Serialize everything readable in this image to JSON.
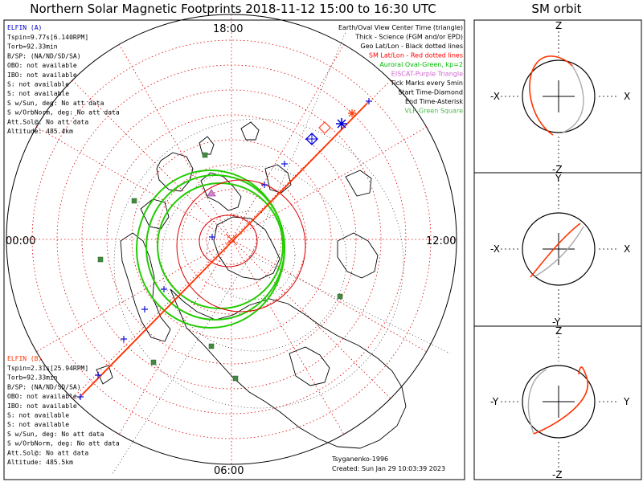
{
  "title": "Northern Solar Magnetic Footprints 2018-11-12 15:00 to 16:30 UTC",
  "orbit_title": "SM orbit",
  "colors": {
    "elfin_a": "#0000cc",
    "elfin_b": "#ff3300",
    "track": "#ff3300",
    "oval": "#00cc00",
    "grid": "#dd0000",
    "ticks": "#0000dd",
    "map": "#000000",
    "stations": "#448844",
    "eiscat": "#aa44aa"
  },
  "mlt_labels": {
    "top": "18:00",
    "left": "00:00",
    "right": "12:00",
    "bottom": "06:00"
  },
  "elfin_a": {
    "name": "ELFIN (A)",
    "lines": [
      "Tspin=9.77s[6.140RPM]",
      "Torb=92.33min",
      "B/SP: (NA/ND/SD/SA)",
      "OBO: not available",
      "IBO: not available",
      "S: not available",
      "S: not available",
      "S w/Sun, deg: No att data",
      "S w/OrbNorm, deg: No att data",
      "Att.Sol@: No att data",
      "Altitude: 485.4km"
    ]
  },
  "elfin_b": {
    "name": "ELFIN (B)",
    "lines": [
      "Tspin=2.31s[25.94RPM]",
      "Torb=92.33min",
      "B/SP: (NA/ND/SD/SA)",
      "OBO: not available",
      "IBO: not available",
      "S: not available",
      "S: not available",
      "S w/Sun, deg: No att data",
      "S w/OrbNorm, deg: No att data",
      "Att.Sol@: No att data",
      "Altitude: 485.5km"
    ]
  },
  "legend": [
    {
      "text": "Earth/Oval View Center Time (triangle)",
      "color": "#000000"
    },
    {
      "text": "Thick - Science (FGM and/or EPD)",
      "color": "#000000"
    },
    {
      "text": "Geo Lat/Lon - Black dotted lines",
      "color": "#000000"
    },
    {
      "text": "SM Lat/Lon - Red dotted lines",
      "color": "#ff0000"
    },
    {
      "text": "Auroral Oval-Green, kp=2",
      "color": "#00bb00"
    },
    {
      "text": "EISCAT-Purple Triangle",
      "color": "#cc66cc"
    },
    {
      "text": "Tick Marks every 5min",
      "color": "#000000"
    },
    {
      "text": "Start Time-Diamond",
      "color": "#000000"
    },
    {
      "text": "End Time-Asterisk",
      "color": "#000000"
    },
    {
      "text": "VLF-Green Square",
      "color": "#44bb44"
    }
  ],
  "credits": {
    "model": "Tsyganenko-1996",
    "created": "Created: Sun Jan 29 10:03:39 2023"
  },
  "orbit_panels": [
    {
      "name": "xz",
      "top": "Z",
      "bottom": "-Z",
      "left": "-X",
      "right": "X"
    },
    {
      "name": "xy",
      "top": "Y",
      "bottom": "-Y",
      "left": "-X",
      "right": "X"
    },
    {
      "name": "yz",
      "top": "Z",
      "bottom": "-Z",
      "left": "-Y",
      "right": "Y"
    }
  ]
}
